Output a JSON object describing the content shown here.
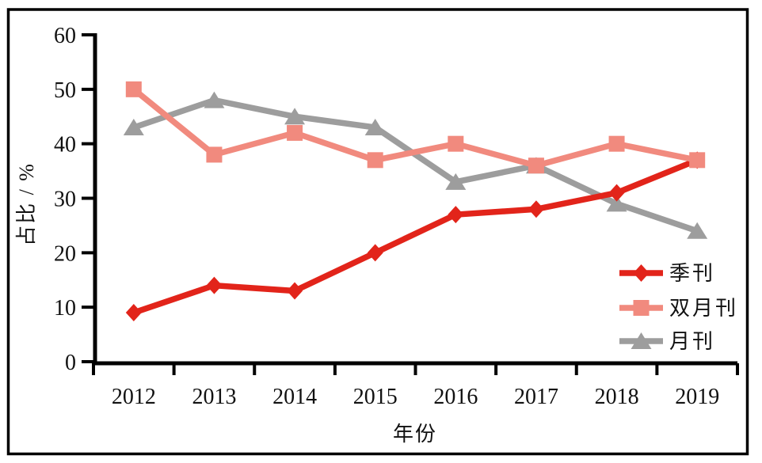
{
  "frame": {
    "background": "#ffffff",
    "border_color": "#000000"
  },
  "chart_data": {
    "type": "line",
    "title": "",
    "xlabel": "年份",
    "ylabel": "占比 / %",
    "categories": [
      "2012",
      "2013",
      "2014",
      "2015",
      "2016",
      "2017",
      "2018",
      "2019"
    ],
    "yticks": [
      0,
      10,
      20,
      30,
      40,
      50,
      60
    ],
    "ylim": [
      0,
      60
    ],
    "grid": false,
    "legend_position": "inside-lower-right",
    "axis_color": "#000000",
    "series": [
      {
        "name": "季刊",
        "marker": "diamond",
        "color": "#e2241a",
        "z": 2,
        "values": [
          9,
          14,
          13,
          20,
          27,
          28,
          31,
          37
        ]
      },
      {
        "name": "双月刊",
        "marker": "square",
        "color": "#f18a7e",
        "z": 3,
        "values": [
          50,
          38,
          42,
          37,
          40,
          36,
          40,
          37
        ]
      },
      {
        "name": "月刊",
        "marker": "triangle",
        "color": "#9d9d9d",
        "z": 1,
        "values": [
          43,
          48,
          45,
          43,
          33,
          36,
          29,
          24
        ]
      }
    ]
  }
}
